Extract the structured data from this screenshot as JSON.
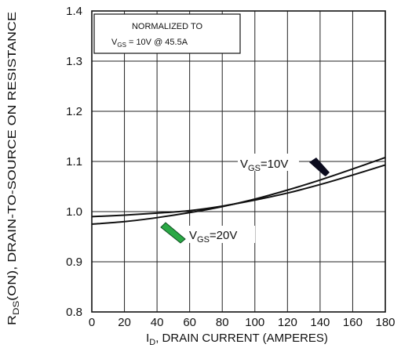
{
  "chart_data": {
    "type": "line",
    "xlabel": {
      "main": "I",
      "sub": "D",
      "rest": ", DRAIN CURRENT (AMPERES)"
    },
    "ylabel": {
      "main": "R",
      "sub": "DS",
      "rest": "(ON), DRAIN-TO-SOURCE ON RESISTANCE"
    },
    "xlim": [
      0,
      180
    ],
    "ylim": [
      0.8,
      1.4
    ],
    "x_ticks": [
      "0",
      "20",
      "40",
      "60",
      "80",
      "100",
      "120",
      "140",
      "160",
      "180"
    ],
    "y_ticks": [
      "0.8",
      "0.9",
      "1.0",
      "1.1",
      "1.2",
      "1.3",
      "1.4"
    ],
    "x_tick_values": [
      0,
      20,
      40,
      60,
      80,
      100,
      120,
      140,
      160,
      180
    ],
    "y_tick_values": [
      0.8,
      0.9,
      1.0,
      1.1,
      1.2,
      1.3,
      1.4
    ],
    "grid": true,
    "annotation": {
      "line1": "NORMALIZED TO",
      "line2_main": "V",
      "line2_sub": "GS",
      "line2_rest": " = 10V  @  45.5A"
    },
    "series": [
      {
        "name": "V_GS=10V",
        "label_main": "V",
        "label_sub": "GS",
        "label_rest": "=10V",
        "x": [
          0,
          20,
          40,
          60,
          80,
          100,
          120,
          140,
          160,
          180
        ],
        "y": [
          0.975,
          0.98,
          0.988,
          0.998,
          1.01,
          1.025,
          1.043,
          1.063,
          1.085,
          1.108
        ]
      },
      {
        "name": "V_GS=20V",
        "label_main": "V",
        "label_sub": "GS",
        "label_rest": "=20V",
        "x": [
          0,
          20,
          40,
          60,
          80,
          100,
          120,
          140,
          160,
          180
        ],
        "y": [
          0.99,
          0.993,
          0.997,
          1.002,
          1.011,
          1.023,
          1.037,
          1.054,
          1.073,
          1.093
        ]
      }
    ]
  },
  "colors": {
    "line": "#111111",
    "grid": "#222222",
    "arrow_10v": "#0b0b1e",
    "arrow_20v": "#2aa845",
    "arrow_20v_dark": "#0c4d1e"
  }
}
